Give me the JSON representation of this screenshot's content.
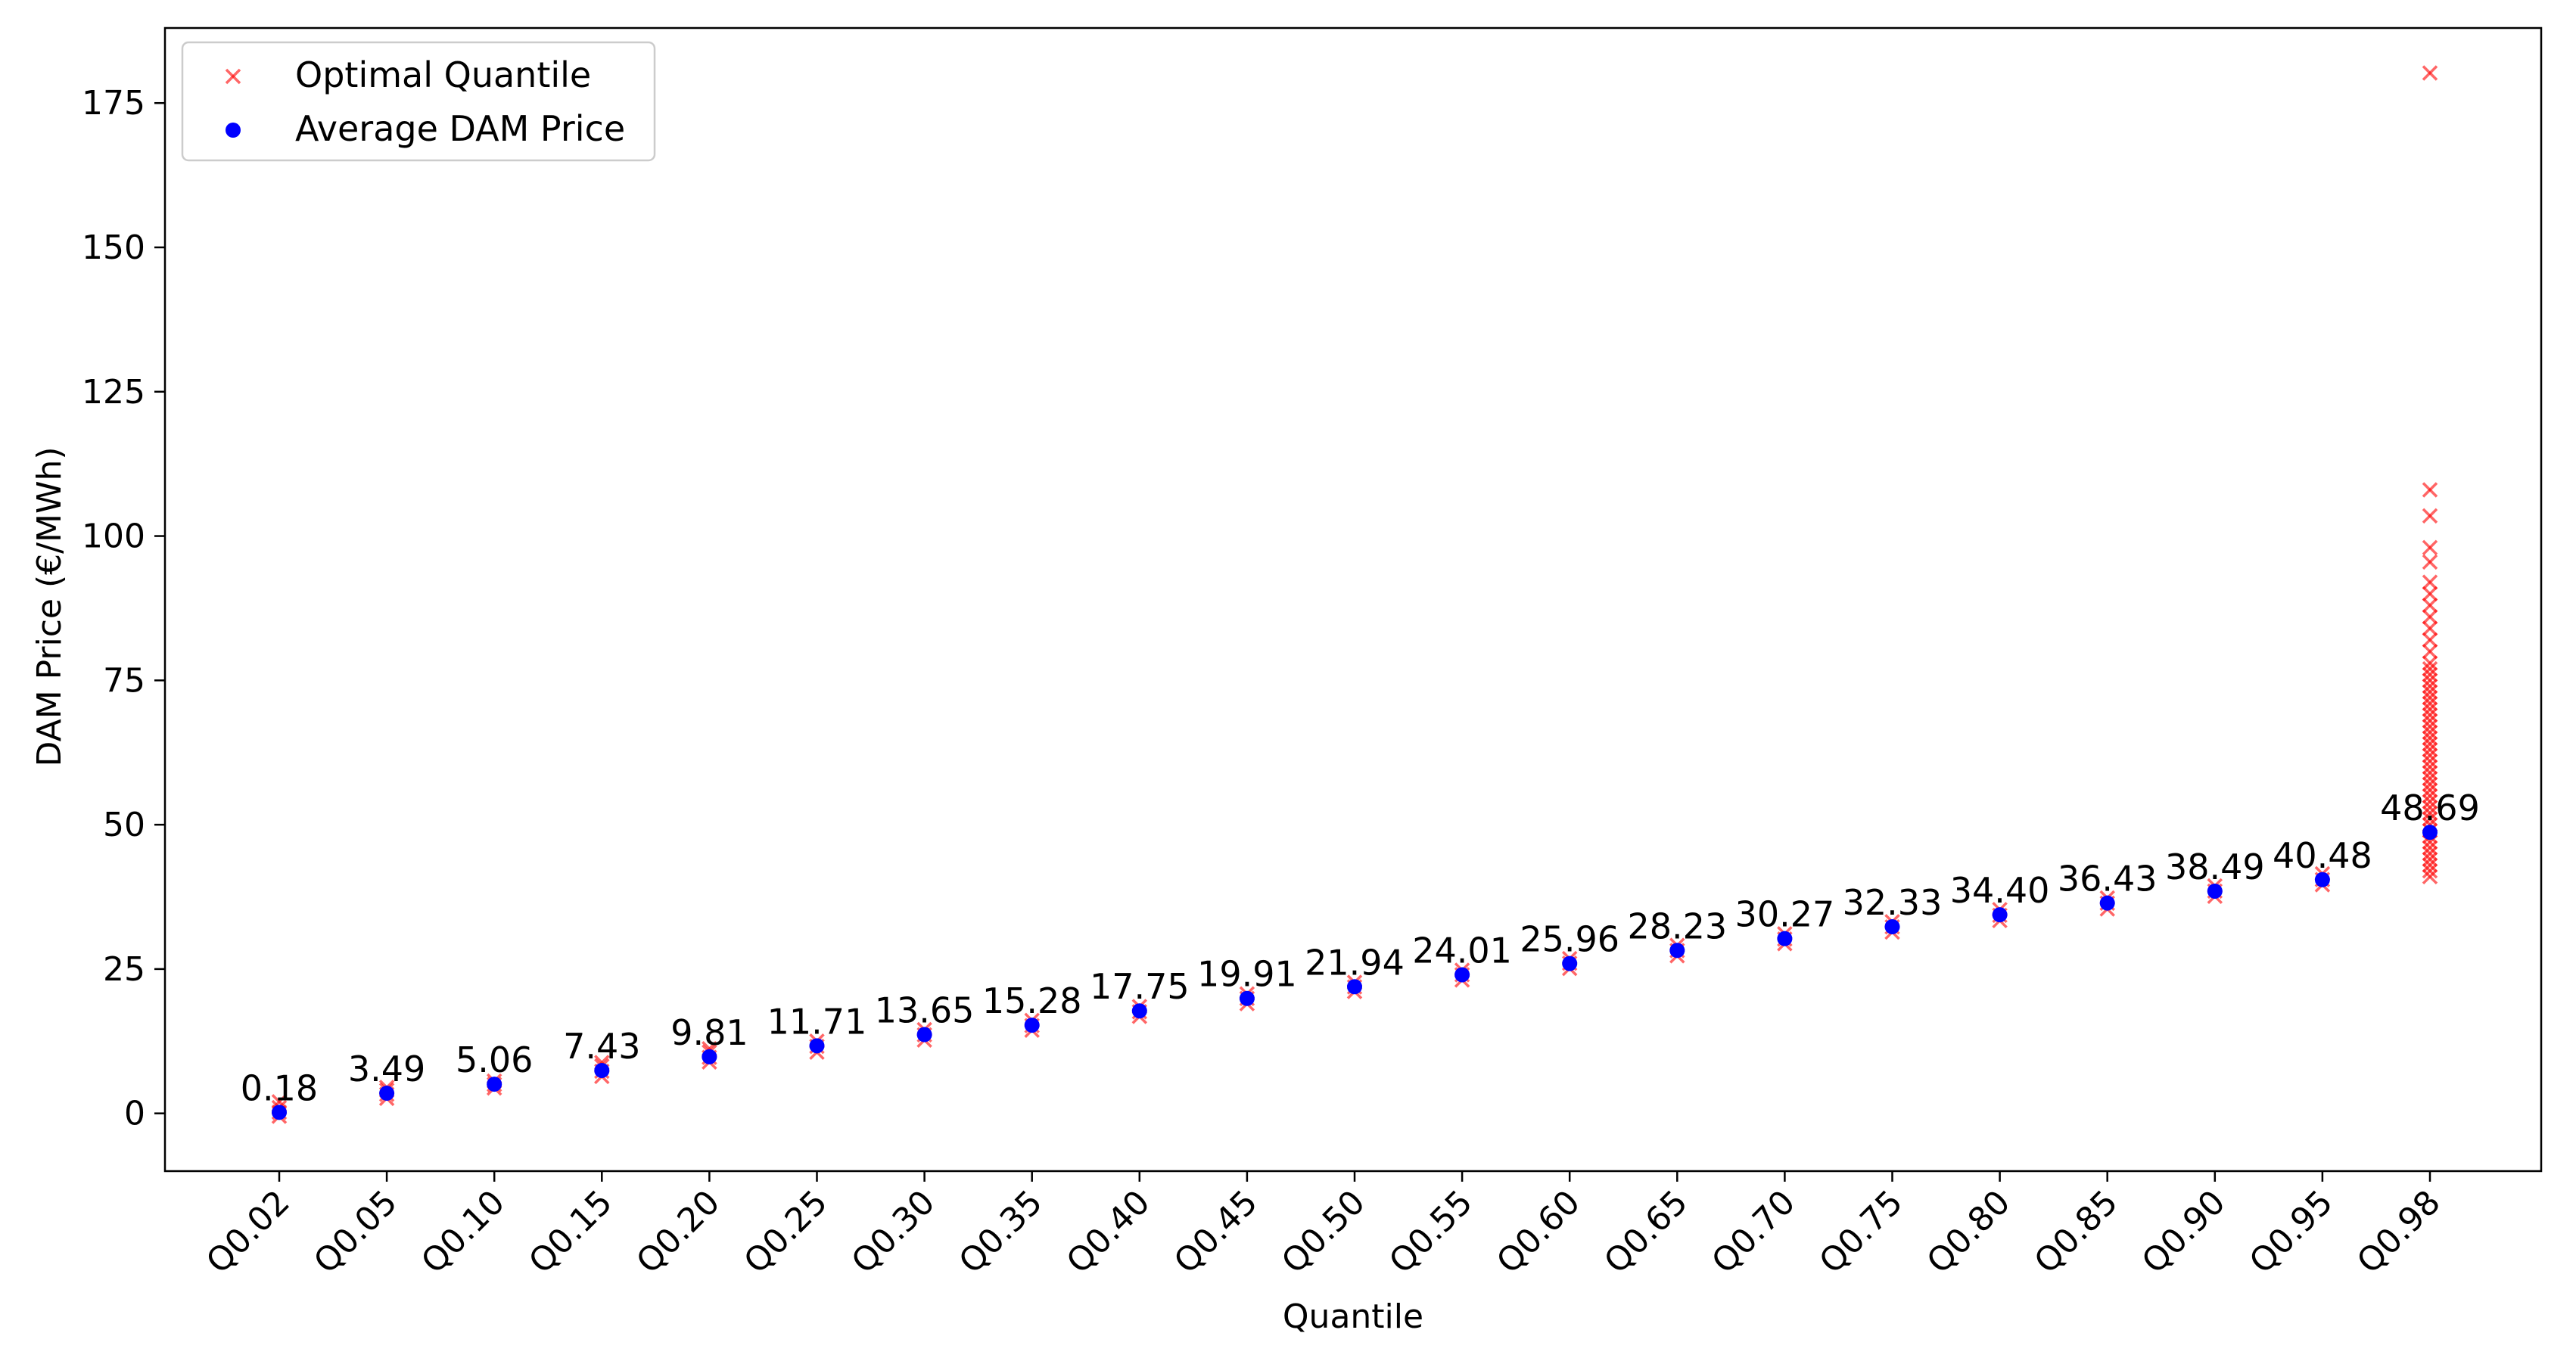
{
  "chart_data": {
    "type": "scatter",
    "xlabel": "Quantile",
    "ylabel": "DAM Price (€/MWh)",
    "categories": [
      "Q0.02",
      "Q0.05",
      "Q0.10",
      "Q0.15",
      "Q0.20",
      "Q0.25",
      "Q0.30",
      "Q0.35",
      "Q0.40",
      "Q0.45",
      "Q0.50",
      "Q0.55",
      "Q0.60",
      "Q0.65",
      "Q0.70",
      "Q0.75",
      "Q0.80",
      "Q0.85",
      "Q0.90",
      "Q0.95",
      "Q0.98"
    ],
    "ylim": [
      -10,
      188
    ],
    "yticks": [
      0,
      25,
      50,
      75,
      100,
      125,
      150,
      175
    ],
    "grid": false,
    "legend_position": "top-left",
    "series": [
      {
        "name": "Optimal Quantile",
        "marker": "x",
        "color": "#ff0000",
        "points_by_category": [
          [
            -0.5,
            0.2,
            1.0,
            2.0
          ],
          [
            2.6,
            3.3,
            4.0,
            4.5
          ],
          [
            4.4,
            5.0,
            5.6
          ],
          [
            6.4,
            7.3,
            8.2,
            8.8
          ],
          [
            8.9,
            9.7,
            10.6,
            11.2
          ],
          [
            10.6,
            11.6,
            12.5
          ],
          [
            12.7,
            13.6,
            14.5
          ],
          [
            14.4,
            15.2,
            16.1
          ],
          [
            16.8,
            17.6,
            18.5
          ],
          [
            19.0,
            19.9,
            20.7
          ],
          [
            21.1,
            21.9,
            22.7
          ],
          [
            23.1,
            24.0,
            24.8
          ],
          [
            25.1,
            26.0,
            26.8
          ],
          [
            27.3,
            28.2,
            29.1
          ],
          [
            29.4,
            30.2,
            31.1
          ],
          [
            31.4,
            32.3,
            33.2
          ],
          [
            33.4,
            34.3,
            35.3
          ],
          [
            35.4,
            36.4,
            37.3
          ],
          [
            37.6,
            38.5,
            39.4
          ],
          [
            39.6,
            40.5,
            41.5
          ],
          [
            41.0,
            42.0,
            43.0,
            44.0,
            45.0,
            46.0,
            47.0,
            48.0,
            49.0,
            50.0,
            51.0,
            52.0,
            53.0,
            54.0,
            55.0,
            56.0,
            57.0,
            58.0,
            59.0,
            60.0,
            61.0,
            62.0,
            63.0,
            64.0,
            65.0,
            66.0,
            67.0,
            68.0,
            69.0,
            70.0,
            71.0,
            72.0,
            73.0,
            74.0,
            75.0,
            76.0,
            77.0,
            78.0,
            80.0,
            82.0,
            84.0,
            86.0,
            88.0,
            90.0,
            92.0,
            95.5,
            98.0,
            103.5,
            108.0,
            180.2
          ]
        ]
      },
      {
        "name": "Average DAM Price",
        "marker": "o",
        "color": "#0000ff",
        "values": [
          0.18,
          3.49,
          5.06,
          7.43,
          9.81,
          11.71,
          13.65,
          15.28,
          17.75,
          19.91,
          21.94,
          24.01,
          25.96,
          28.23,
          30.27,
          32.33,
          34.4,
          36.43,
          38.49,
          40.48,
          48.69
        ]
      }
    ],
    "data_labels": [
      "0.18",
      "3.49",
      "5.06",
      "7.43",
      "9.81",
      "11.71",
      "13.65",
      "15.28",
      "17.75",
      "19.91",
      "21.94",
      "24.01",
      "25.96",
      "28.23",
      "30.27",
      "32.33",
      "34.40",
      "36.43",
      "38.49",
      "40.48",
      "48.69"
    ]
  }
}
